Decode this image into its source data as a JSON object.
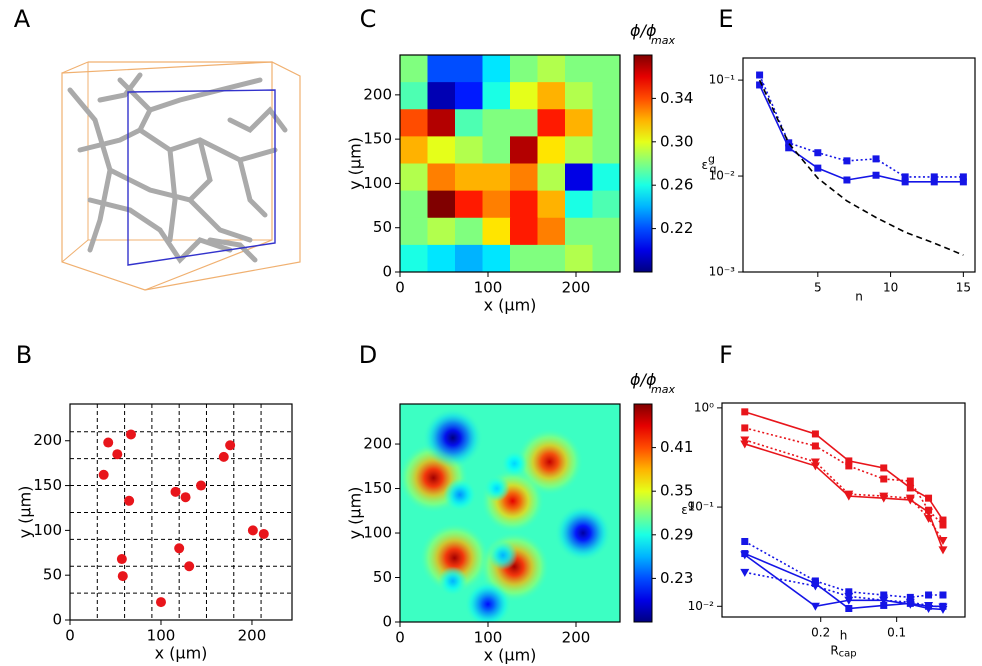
{
  "chart_data": [
    {
      "label": "A",
      "type": "image"
    },
    {
      "label": "B",
      "type": "scatter",
      "x": [
        42,
        52,
        67,
        37,
        65,
        116,
        127,
        144,
        169,
        176,
        201,
        213,
        57,
        58,
        120,
        131,
        100
      ],
      "y": [
        198,
        185,
        207,
        162,
        133,
        143,
        137,
        150,
        182,
        195,
        100,
        96,
        68,
        49,
        80,
        60,
        20
      ],
      "color": "#e8151b",
      "xlim": [
        0,
        244
      ],
      "ylim": [
        0,
        241
      ],
      "xticks": [
        0,
        100,
        200
      ],
      "yticks": [
        0,
        50,
        100,
        150,
        200
      ],
      "xlabel": "x (μm)",
      "ylabel": "y (μm)",
      "dashed_grid": {
        "x": [
          30,
          60,
          90,
          120,
          150,
          180,
          210
        ],
        "y": [
          30,
          60,
          90,
          120,
          150,
          180,
          210
        ]
      }
    },
    {
      "label": "C",
      "type": "heatmap",
      "values": [
        [
          0.28,
          0.22,
          0.22,
          0.25,
          0.28,
          0.29,
          0.28,
          0.28
        ],
        [
          0.27,
          0.19,
          0.21,
          0.26,
          0.3,
          0.32,
          0.29,
          0.28
        ],
        [
          0.34,
          0.37,
          0.27,
          0.28,
          0.28,
          0.35,
          0.32,
          0.28
        ],
        [
          0.32,
          0.3,
          0.29,
          0.28,
          0.37,
          0.31,
          0.29,
          0.28
        ],
        [
          0.29,
          0.33,
          0.32,
          0.32,
          0.33,
          0.29,
          0.2,
          0.26
        ],
        [
          0.28,
          0.38,
          0.35,
          0.33,
          0.35,
          0.32,
          0.26,
          0.27
        ],
        [
          0.28,
          0.29,
          0.28,
          0.31,
          0.35,
          0.33,
          0.28,
          0.28
        ],
        [
          0.26,
          0.25,
          0.24,
          0.25,
          0.28,
          0.28,
          0.29,
          0.28
        ]
      ],
      "xlim": [
        0,
        250
      ],
      "ylim": [
        0,
        245
      ],
      "xticks": [
        0,
        100,
        200
      ],
      "yticks": [
        0,
        50,
        100,
        150,
        200
      ],
      "xlabel": "x (μm)",
      "ylabel": "y (μm)",
      "clim": [
        0.18,
        0.38
      ],
      "cticks": [
        0.22,
        0.26,
        {
          "value": 0.3,
          "label": "0.30"
        },
        0.34
      ],
      "colorbar_label": {
        "text": "ϕ/ϕ",
        "sub": "max"
      }
    },
    {
      "label": "D",
      "type": "field",
      "background": 0.3,
      "spots": [
        {
          "x": 38,
          "y": 162,
          "value": 0.46
        },
        {
          "x": 62,
          "y": 72,
          "value": 0.46
        },
        {
          "x": 130,
          "y": 62,
          "value": 0.46
        },
        {
          "x": 170,
          "y": 180,
          "value": 0.45
        },
        {
          "x": 128,
          "y": 136,
          "value": 0.44
        },
        {
          "x": 60,
          "y": 207,
          "value": 0.17
        },
        {
          "x": 208,
          "y": 100,
          "value": 0.18
        },
        {
          "x": 100,
          "y": 20,
          "value": 0.21
        },
        {
          "x": 68,
          "y": 143,
          "value": 0.25
        },
        {
          "x": 60,
          "y": 46,
          "value": 0.26
        },
        {
          "x": 110,
          "y": 150,
          "value": 0.27
        },
        {
          "x": 130,
          "y": 178,
          "value": 0.27
        },
        {
          "x": 117,
          "y": 75,
          "value": 0.26
        }
      ],
      "xlim": [
        0,
        250
      ],
      "ylim": [
        0,
        245
      ],
      "xticks": [
        0,
        100,
        200
      ],
      "yticks": [
        0,
        50,
        100,
        150,
        200
      ],
      "xlabel": "x (μm)",
      "ylabel": "y (μm)",
      "clim": [
        0.17,
        0.47
      ],
      "cticks": [
        0.23,
        0.29,
        0.35,
        0.41
      ],
      "colorbar_label": {
        "text": "ϕ/ϕ",
        "sub": "max"
      }
    },
    {
      "label": "E",
      "type": "line",
      "ylog": true,
      "x": [
        1,
        3,
        5,
        7,
        9,
        11,
        13,
        15
      ],
      "series": [
        {
          "color": "#1515e6",
          "marker": "square",
          "linestyle": "solid",
          "values": [
            0.089,
            0.0197,
            0.0121,
            0.0091,
            0.0102,
            0.0087,
            0.0087,
            0.0087
          ]
        },
        {
          "color": "#1515e6",
          "marker": "square",
          "linestyle": "dotted",
          "values": [
            0.113,
            0.0222,
            0.0175,
            0.0144,
            0.0151,
            0.0098,
            0.0098,
            0.0098
          ]
        },
        {
          "color": "#000000",
          "linestyle": "dashed",
          "values": [
            0.1,
            0.022,
            0.0095,
            0.0055,
            0.0037,
            0.0026,
            0.002,
            0.0015
          ]
        }
      ],
      "xlim": [
        -0.14,
        15.8
      ],
      "ylim": [
        0.001,
        0.17
      ],
      "xticks": [
        5,
        10,
        15
      ],
      "yticks": [
        {
          "value": 0.001,
          "label": "10⁻³"
        },
        {
          "value": 0.01,
          "label": "10⁻²"
        },
        {
          "value": 0.1,
          "label": "10⁻¹"
        }
      ],
      "xlabel": "n",
      "ylabel": {
        "text": "ε",
        "sub": "q",
        "sup": "g"
      }
    },
    {
      "label": "F",
      "type": "line",
      "ylog": true,
      "x": [
        0.3,
        0.207,
        0.163,
        0.117,
        0.082,
        0.058,
        0.039
      ],
      "series": [
        {
          "color": "#e8151b",
          "marker": "square",
          "linestyle": "solid",
          "values": [
            0.912,
            0.546,
            0.292,
            0.248,
            0.156,
            0.123,
            0.074
          ]
        },
        {
          "color": "#e8151b",
          "marker": "square",
          "linestyle": "dotted",
          "values": [
            0.628,
            0.413,
            0.26,
            0.192,
            0.183,
            0.093,
            0.066
          ]
        },
        {
          "color": "#e8151b",
          "marker": "triangle",
          "linestyle": "solid",
          "values": [
            0.433,
            0.26,
            0.129,
            0.123,
            0.118,
            0.089,
            0.037
          ]
        },
        {
          "color": "#e8151b",
          "marker": "triangle",
          "linestyle": "dotted",
          "values": [
            0.475,
            0.285,
            0.135,
            0.129,
            0.123,
            0.077,
            0.046
          ]
        },
        {
          "color": "#1515e6",
          "marker": "square",
          "linestyle": "dotted",
          "values": [
            0.045,
            0.018,
            0.014,
            0.013,
            0.0123,
            0.013,
            0.013
          ]
        },
        {
          "color": "#1515e6",
          "marker": "square",
          "linestyle": "solid",
          "values": [
            0.034,
            0.017,
            0.0095,
            0.0102,
            0.0107,
            0.01,
            0.01
          ]
        },
        {
          "color": "#1515e6",
          "marker": "triangle",
          "linestyle": "solid",
          "values": [
            0.033,
            0.01,
            0.0115,
            0.0115,
            0.0105,
            0.0095,
            0.0093
          ]
        },
        {
          "color": "#1515e6",
          "marker": "triangle",
          "linestyle": "dotted",
          "values": [
            0.022,
            0.016,
            0.0126,
            0.0115,
            0.011,
            0.0102,
            0.0098
          ]
        }
      ],
      "xlim": [
        0.33,
        0.01
      ],
      "ylim": [
        0.0078,
        1.12
      ],
      "xticks": [
        0.2,
        0.1
      ],
      "yticks": [
        {
          "value": 0.01,
          "label": "10⁻²"
        },
        {
          "value": 0.1,
          "label": "10⁻¹"
        },
        {
          "value": 1,
          "label": "10⁰"
        }
      ],
      "xlabel": {
        "numerator": "h",
        "denominator": "R",
        "sub": "cap"
      },
      "ylabel": {
        "text": "ε",
        "sup": "g"
      }
    }
  ]
}
